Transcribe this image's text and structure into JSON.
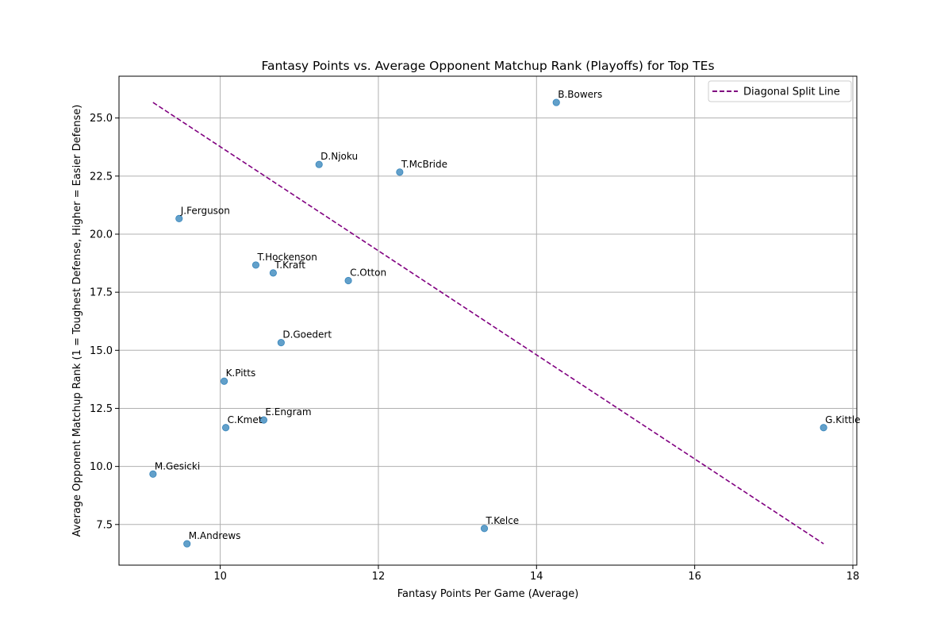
{
  "chart_data": {
    "type": "scatter",
    "title": "Fantasy Points vs. Average Opponent Matchup Rank (Playoffs) for Top TEs",
    "xlabel": "Fantasy Points Per Game (Average)",
    "ylabel": "Average Opponent Matchup Rank (1 = Toughest Defense, Higher = Easier Defense)",
    "xlim": [
      8.72,
      18.05
    ],
    "ylim": [
      5.75,
      26.8
    ],
    "xticks": [
      10,
      12,
      14,
      16,
      18
    ],
    "xtick_labels": [
      "10",
      "12",
      "14",
      "16",
      "18"
    ],
    "yticks": [
      7.5,
      10.0,
      12.5,
      15.0,
      17.5,
      20.0,
      22.5,
      25.0
    ],
    "ytick_labels": [
      "7.5",
      "10.0",
      "12.5",
      "15.0",
      "17.5",
      "20.0",
      "22.5",
      "25.0"
    ],
    "grid": true,
    "legend_placement": "top-right",
    "point_color": "#1f77b4",
    "line_color": "#800080",
    "points": [
      {
        "name": "B.Bowers",
        "x": 14.25,
        "y": 25.67
      },
      {
        "name": "D.Njoku",
        "x": 11.25,
        "y": 23.0
      },
      {
        "name": "T.McBride",
        "x": 12.27,
        "y": 22.67
      },
      {
        "name": "J.Ferguson",
        "x": 9.48,
        "y": 20.67
      },
      {
        "name": "T.Hockenson",
        "x": 10.45,
        "y": 18.67
      },
      {
        "name": "T.Kraft",
        "x": 10.67,
        "y": 18.33
      },
      {
        "name": "C.Otton",
        "x": 11.62,
        "y": 18.0
      },
      {
        "name": "D.Goedert",
        "x": 10.77,
        "y": 15.33
      },
      {
        "name": "K.Pitts",
        "x": 10.05,
        "y": 13.67
      },
      {
        "name": "E.Engram",
        "x": 10.55,
        "y": 12.0
      },
      {
        "name": "C.Kmet",
        "x": 10.07,
        "y": 11.67
      },
      {
        "name": "G.Kittle",
        "x": 17.63,
        "y": 11.67
      },
      {
        "name": "M.Gesicki",
        "x": 9.15,
        "y": 9.67
      },
      {
        "name": "T.Kelce",
        "x": 13.34,
        "y": 7.33
      },
      {
        "name": "M.Andrews",
        "x": 9.58,
        "y": 6.67
      }
    ],
    "series": [
      {
        "name": "Diagonal Split Line",
        "type": "line",
        "style": "dashed",
        "x": [
          9.15,
          17.63
        ],
        "y": [
          25.67,
          6.67
        ]
      }
    ]
  }
}
